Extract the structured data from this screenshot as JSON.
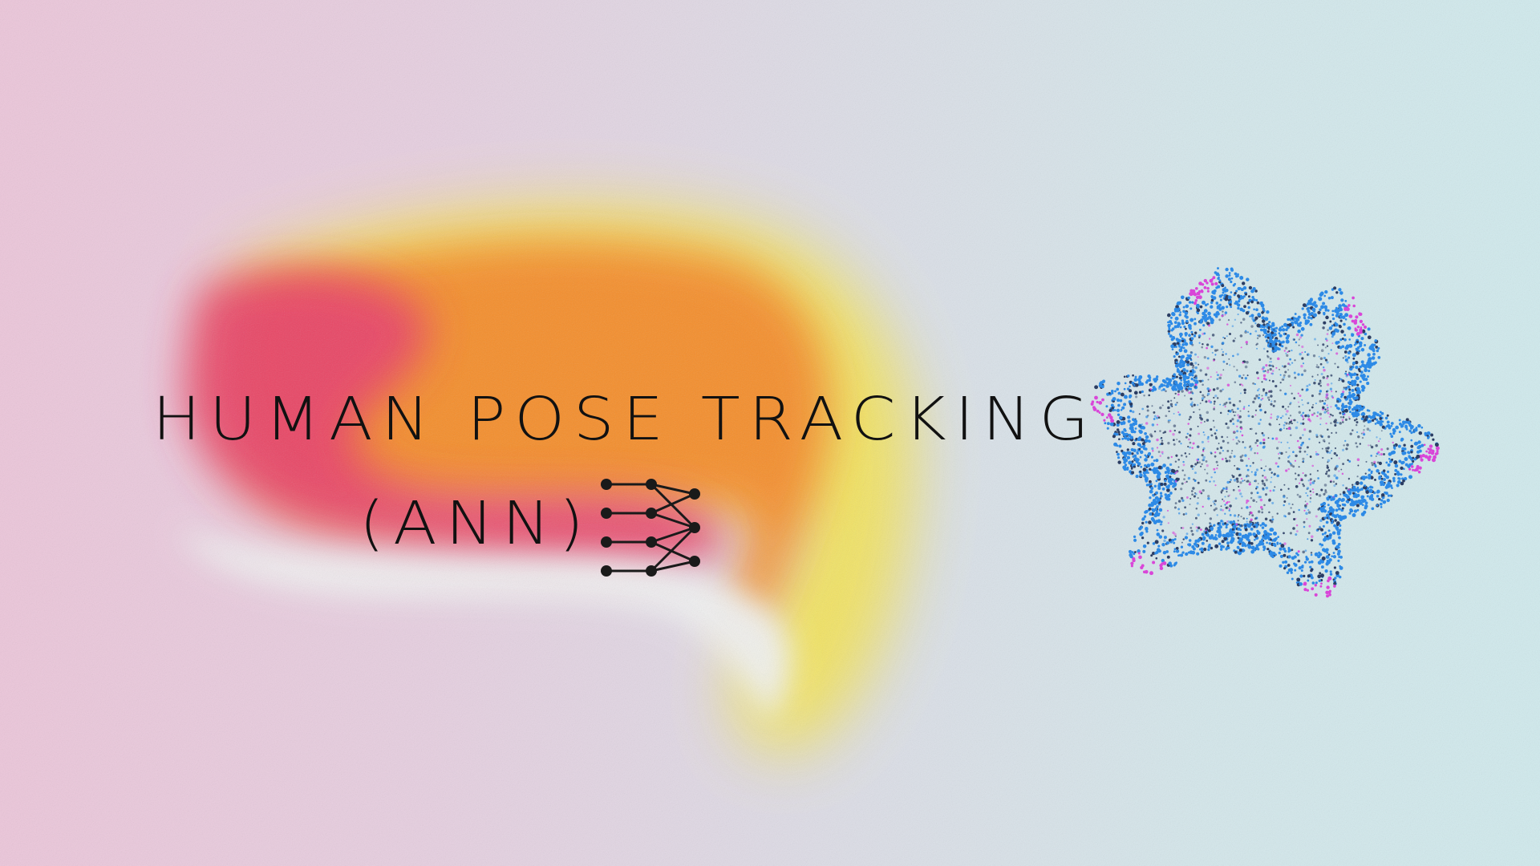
{
  "title": {
    "line1": "HUMAN POSE TRACKING",
    "line2": "(ANN)"
  },
  "icons": {
    "network": "neural-network-icon",
    "sphere": "point-cloud-sphere-icon"
  },
  "colors": {
    "background_left": "#ecc6da",
    "background_right": "#d0eaed",
    "blob_red": "#e8416a",
    "blob_orange": "#f58a2a",
    "blob_yellow": "#f3e35a",
    "blob_white": "#f1f2f2",
    "title_text": "#111111",
    "cloud_blue": "#2d8ae6",
    "cloud_dark": "#2b3d63",
    "cloud_magenta": "#d946d8"
  }
}
